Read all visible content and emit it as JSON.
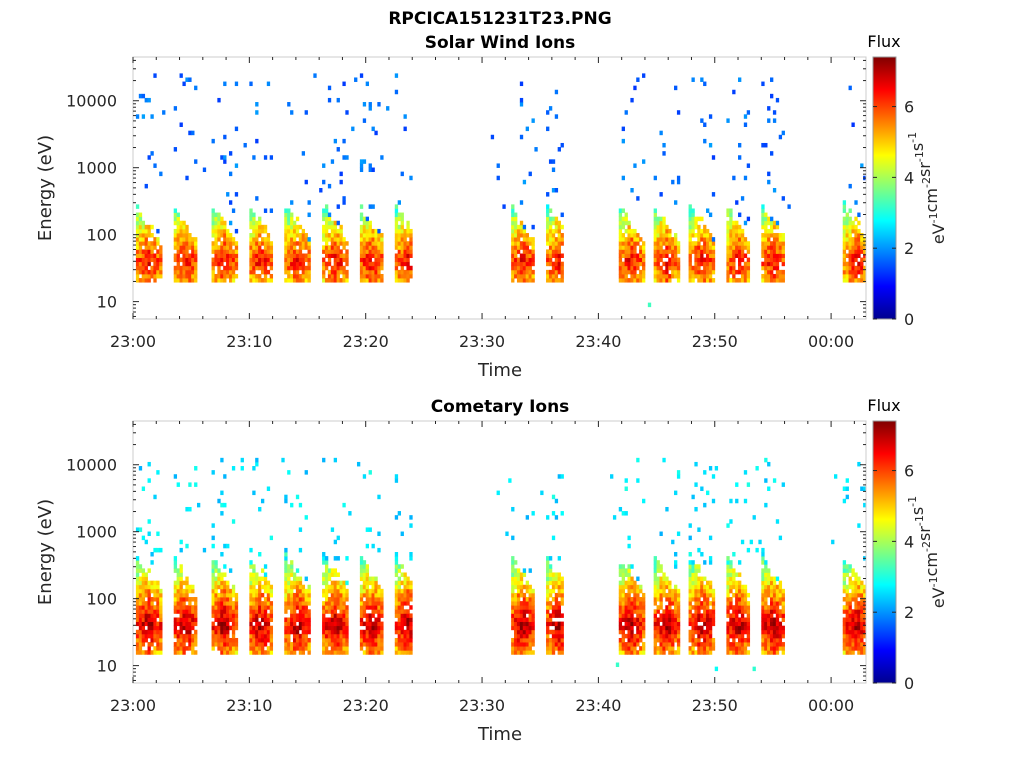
{
  "figure_title": "RPCICA151231T23.PNG",
  "chart_data": [
    {
      "type": "heatmap",
      "title": "Solar Wind Ions",
      "xlabel": "Time",
      "ylabel": "Energy (eV)",
      "yscale": "log",
      "xlim": [
        "23:00",
        "00:03"
      ],
      "ylim": [
        5.5,
        45000
      ],
      "x_tick_labels": [
        "23:00",
        "23:10",
        "23:20",
        "23:30",
        "23:40",
        "23:50",
        "00:00"
      ],
      "y_tick_labels": [
        "10",
        "100",
        "1000",
        "10000"
      ],
      "y_tick_values": [
        10,
        100,
        1000,
        10000
      ],
      "colorbar": {
        "title": "Flux",
        "units_base": [
          "eV",
          "cm",
          "sr",
          "s"
        ],
        "units_exp": [
          "-1",
          "-2",
          "-1",
          "-1"
        ],
        "range": [
          0,
          7.4
        ],
        "tick_labels": [
          "0",
          "2",
          "4",
          "6"
        ],
        "tick_values": [
          0,
          2,
          4,
          6
        ],
        "colormap": "jet"
      },
      "bursts_minutes": [
        0.3,
        3.5,
        6.8,
        10.0,
        13.2,
        16.4,
        19.5,
        22.6,
        32.5,
        35.6,
        41.8,
        44.8,
        47.9,
        51.0,
        54.0,
        56.5,
        61.2
      ],
      "gaps_minutes": [
        [
          24.0,
          30.7
        ],
        [
          36.8,
          40.3
        ],
        [
          56.5,
          59.0
        ]
      ],
      "peak_energy_eV": 40,
      "burst_peak_flux": 6.6,
      "burst_energy_range_eV": [
        20,
        250
      ],
      "sparse_energy_range_eV": [
        250,
        25000
      ],
      "sparse_flux": 1.7
    },
    {
      "type": "heatmap",
      "title": "Cometary Ions",
      "xlabel": "Time",
      "ylabel": "Energy (eV)",
      "yscale": "log",
      "xlim": [
        "23:00",
        "00:03"
      ],
      "ylim": [
        5.5,
        45000
      ],
      "x_tick_labels": [
        "23:00",
        "23:10",
        "23:20",
        "23:30",
        "23:40",
        "23:50",
        "00:00"
      ],
      "y_tick_labels": [
        "10",
        "100",
        "1000",
        "10000"
      ],
      "y_tick_values": [
        10,
        100,
        1000,
        10000
      ],
      "colorbar": {
        "title": "Flux",
        "units_base": [
          "eV",
          "cm",
          "sr",
          "s"
        ],
        "units_exp": [
          "-1",
          "-2",
          "-1",
          "-1"
        ],
        "range": [
          0,
          7.4
        ],
        "tick_labels": [
          "0",
          "2",
          "4",
          "6"
        ],
        "tick_values": [
          0,
          2,
          4,
          6
        ],
        "colormap": "jet"
      },
      "bursts_minutes": [
        0.3,
        3.5,
        6.8,
        10.0,
        13.2,
        16.4,
        19.5,
        22.6,
        32.5,
        35.6,
        41.8,
        44.8,
        47.9,
        51.0,
        54.0,
        56.5,
        61.2
      ],
      "gaps_minutes": [
        [
          24.0,
          30.7
        ],
        [
          36.8,
          40.3
        ],
        [
          56.5,
          59.0
        ]
      ],
      "peak_energy_eV": 40,
      "burst_peak_flux": 7.1,
      "burst_energy_range_eV": [
        15,
        400
      ],
      "sparse_energy_range_eV": [
        400,
        12000
      ],
      "sparse_flux": 2.6
    }
  ]
}
